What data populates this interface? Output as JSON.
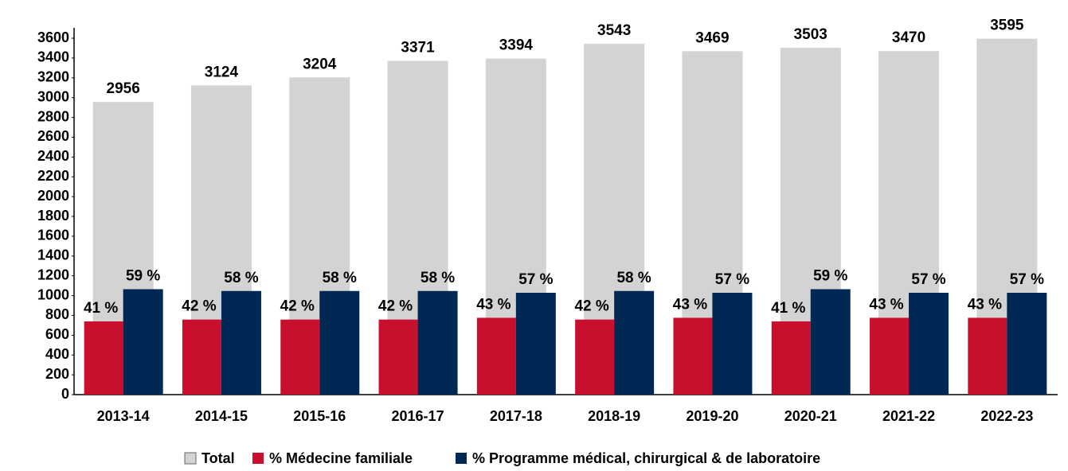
{
  "chart_data": {
    "type": "bar",
    "categories": [
      "2013-14",
      "2014-15",
      "2015-16",
      "2016-17",
      "2017-18",
      "2018-19",
      "2019-20",
      "2020-21",
      "2021-22",
      "2022-23"
    ],
    "series": [
      {
        "name": "Total",
        "color": "#d3d3d3",
        "values": [
          2956,
          3124,
          3204,
          3371,
          3394,
          3543,
          3469,
          3503,
          3470,
          3595
        ]
      },
      {
        "name": "% Médecine familiale",
        "color": "#c8102e",
        "axis": "y2",
        "values": [
          41,
          42,
          42,
          42,
          43,
          42,
          43,
          41,
          43,
          43
        ],
        "value_labels": [
          "41 %",
          "42 %",
          "42 %",
          "42 %",
          "43 %",
          "42 %",
          "43 %",
          "41 %",
          "43 %",
          "43 %"
        ]
      },
      {
        "name": "% Programme médical, chirurgical & de laboratoire",
        "color": "#002855",
        "axis": "y2",
        "values": [
          59,
          58,
          58,
          58,
          57,
          58,
          57,
          59,
          57,
          57
        ],
        "value_labels": [
          "59 %",
          "58 %",
          "58 %",
          "58 %",
          "57 %",
          "58 %",
          "57 %",
          "59 %",
          "57 %",
          "57 %"
        ]
      }
    ],
    "ylim": [
      0,
      3700
    ],
    "yticks": [
      0,
      200,
      400,
      600,
      800,
      1000,
      1200,
      1400,
      1600,
      1800,
      2000,
      2200,
      2400,
      2600,
      2800,
      3000,
      3200,
      3400,
      3600
    ],
    "y2lim": [
      0,
      205
    ],
    "legend": "bottom"
  }
}
